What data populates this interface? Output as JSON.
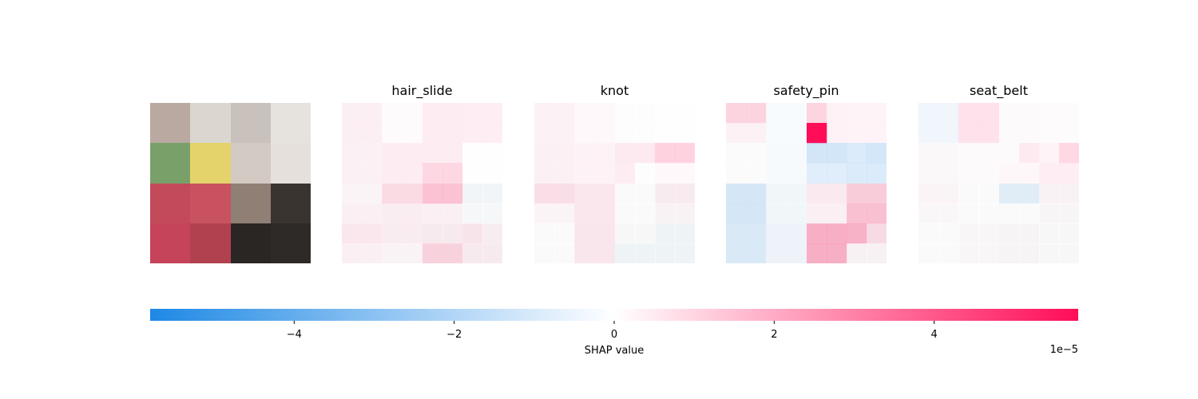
{
  "chart_data": {
    "type": "heatmap",
    "colorbar": {
      "label": "SHAP value",
      "offset_text": "1e−5",
      "range": [
        -5.8,
        5.8
      ],
      "ticks": [
        -4,
        -2,
        0,
        2,
        4
      ],
      "tick_labels": [
        "−4",
        "−2",
        "0",
        "2",
        "4"
      ],
      "colors": {
        "negative": "#1e88e5",
        "zero": "#ffffff",
        "positive": "#ff0d57"
      }
    },
    "original_image": {
      "description_tiles": [
        [
          "#b9a9a0",
          "#dcd6d0",
          "#c9c2bc",
          "#e6e2de"
        ],
        [
          "#7aa06a",
          "#e3d36a",
          "#d4cac4",
          "#e6e0dc"
        ],
        [
          "#c24a5a",
          "#c8535f",
          "#8f7f75",
          "#3a3431"
        ],
        [
          "#c5445a",
          "#b2414f",
          "#2a2624",
          "#2e2a28"
        ]
      ]
    },
    "grid": {
      "rows": 8,
      "cols": 8
    },
    "panels": [
      {
        "title": "hair_slide",
        "values": [
          [
            0.4,
            0.4,
            0.1,
            0.1,
            0.5,
            0.5,
            0.5,
            0.5
          ],
          [
            0.4,
            0.4,
            0.1,
            0.1,
            0.5,
            0.5,
            0.5,
            0.5
          ],
          [
            0.3,
            0.3,
            0.5,
            0.5,
            0.5,
            0.5,
            0.0,
            0.0
          ],
          [
            0.3,
            0.3,
            0.5,
            0.5,
            1.2,
            1.2,
            0.0,
            0.0
          ],
          [
            0.2,
            0.2,
            1.0,
            1.0,
            1.8,
            1.8,
            -0.2,
            -0.2
          ],
          [
            0.3,
            0.3,
            0.4,
            0.4,
            0.3,
            0.3,
            -0.1,
            -0.1
          ],
          [
            0.6,
            0.6,
            0.4,
            0.4,
            0.4,
            0.4,
            0.6,
            0.3
          ],
          [
            0.3,
            0.3,
            0.2,
            0.2,
            1.2,
            1.2,
            0.4,
            0.4
          ]
        ]
      },
      {
        "title": "knot",
        "values": [
          [
            0.3,
            0.3,
            0.2,
            0.2,
            0.0,
            0.0,
            0.0,
            0.0
          ],
          [
            0.3,
            0.3,
            0.2,
            0.2,
            0.0,
            0.0,
            0.0,
            0.0
          ],
          [
            0.3,
            0.3,
            0.3,
            0.3,
            0.6,
            0.6,
            1.4,
            1.4
          ],
          [
            0.3,
            0.3,
            0.3,
            0.3,
            0.5,
            0.0,
            0.2,
            0.2
          ],
          [
            0.9,
            0.9,
            0.6,
            0.6,
            0.0,
            0.0,
            0.4,
            0.4
          ],
          [
            0.2,
            0.2,
            0.6,
            0.6,
            0.0,
            0.0,
            0.2,
            0.2
          ],
          [
            0.0,
            0.0,
            0.6,
            0.6,
            0.0,
            0.0,
            -0.3,
            -0.3
          ],
          [
            0.0,
            0.0,
            0.6,
            0.6,
            -0.3,
            -0.3,
            -0.3,
            -0.3
          ]
        ]
      },
      {
        "title": "safety_pin",
        "values": [
          [
            1.3,
            1.3,
            -0.2,
            -0.2,
            1.3,
            0.3,
            0.3,
            0.3
          ],
          [
            0.3,
            0.3,
            -0.2,
            -0.2,
            5.8,
            0.3,
            0.3,
            0.3
          ],
          [
            0.0,
            0.0,
            -0.2,
            -0.2,
            -1.5,
            -1.5,
            -1.2,
            -1.5
          ],
          [
            0.0,
            0.0,
            -0.2,
            -0.2,
            -1.0,
            -1.0,
            -1.2,
            -1.2
          ],
          [
            -1.3,
            -1.3,
            -0.3,
            -0.3,
            0.5,
            0.5,
            1.4,
            1.4
          ],
          [
            -1.3,
            -1.3,
            -0.3,
            -0.3,
            0.3,
            0.3,
            1.8,
            1.8
          ],
          [
            -1.1,
            -1.1,
            -0.4,
            -0.4,
            2.3,
            2.3,
            2.2,
            0.9
          ],
          [
            -1.1,
            -1.1,
            -0.4,
            -0.4,
            2.3,
            2.3,
            0.2,
            0.2
          ]
        ]
      },
      {
        "title": "seat_belt",
        "values": [
          [
            -0.4,
            -0.4,
            0.9,
            0.9,
            0.1,
            0.1,
            0.1,
            0.1
          ],
          [
            -0.4,
            -0.4,
            0.9,
            0.9,
            0.1,
            0.1,
            0.1,
            0.1
          ],
          [
            0.1,
            0.1,
            0.1,
            0.1,
            0.1,
            0.6,
            0.3,
            1.2
          ],
          [
            0.1,
            0.1,
            0.1,
            0.1,
            0.2,
            0.2,
            0.5,
            0.5
          ],
          [
            0.2,
            0.2,
            0.0,
            0.0,
            -0.9,
            -0.9,
            0.2,
            0.2
          ],
          [
            0.1,
            0.1,
            0.0,
            0.0,
            0.0,
            0.0,
            0.1,
            0.1
          ],
          [
            0.0,
            0.0,
            0.1,
            0.1,
            0.1,
            0.1,
            0.0,
            0.0
          ],
          [
            0.0,
            0.0,
            0.1,
            0.1,
            0.1,
            0.1,
            0.0,
            0.0
          ]
        ]
      }
    ]
  }
}
